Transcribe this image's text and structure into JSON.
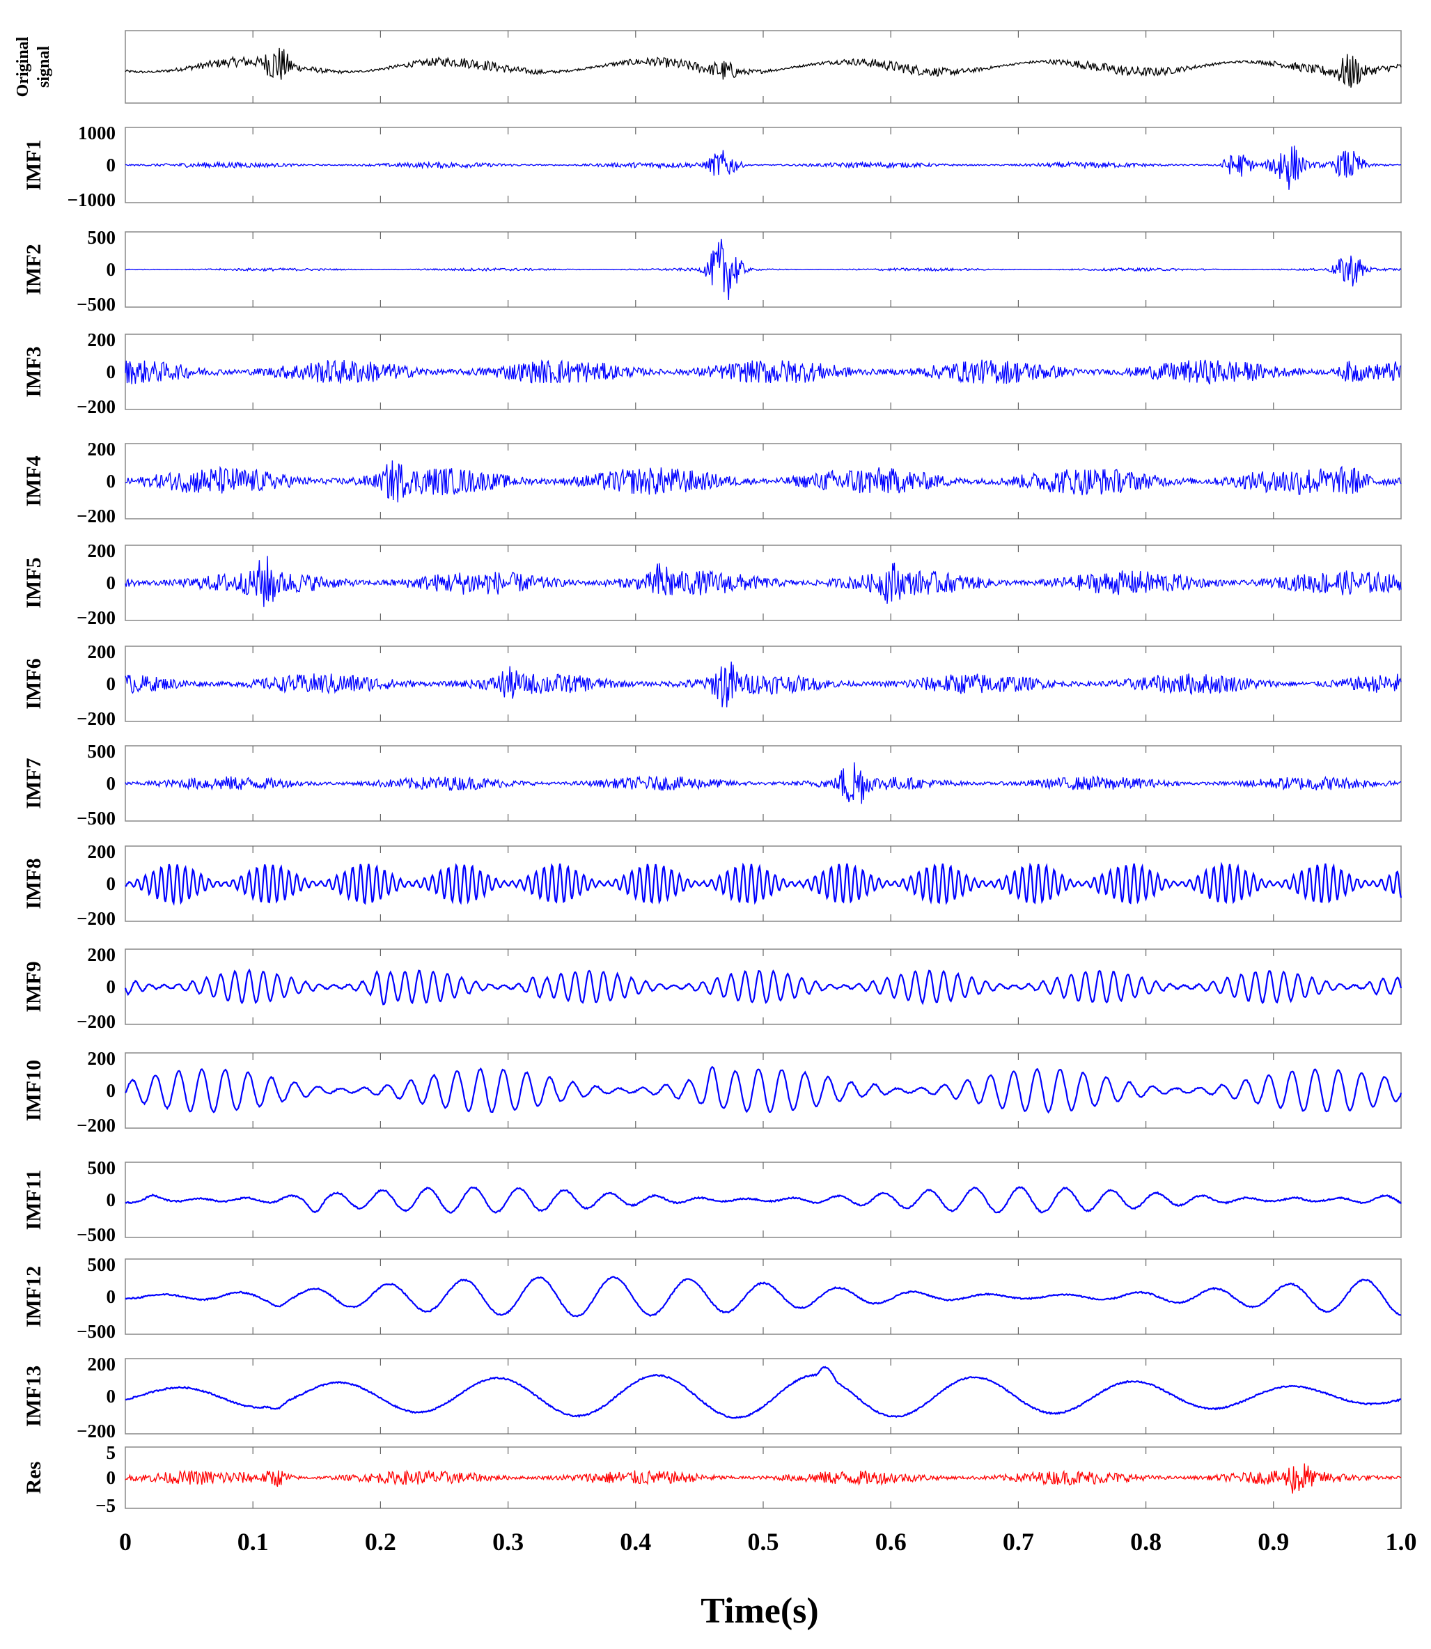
{
  "chart_data": {
    "type": "line",
    "title": "",
    "xlabel": "Time(s)",
    "xlim": [
      0,
      1.0
    ],
    "xticks": [
      "0",
      "0.1",
      "0.2",
      "0.3",
      "0.4",
      "0.5",
      "0.6",
      "0.7",
      "0.8",
      "0.9",
      "1.0"
    ],
    "grid": "vertical gridlines at x ticks",
    "panels": [
      {
        "label": "Original signal",
        "label_lines": [
          "Original",
          "signal"
        ],
        "color": "#000000",
        "ylim": null,
        "yticks": [],
        "style": {
          "freq": 220,
          "amp": 0.22,
          "bursts": [
            [
              0.12,
              0.9
            ],
            [
              0.47,
              0.6
            ],
            [
              0.96,
              0.8
            ]
          ]
        }
      },
      {
        "label": "IMF1",
        "color": "#0000ff",
        "ylim": [
          -1000,
          1000
        ],
        "yticks": [
          "1000",
          "0",
          "−1000"
        ],
        "style": {
          "freq": 900,
          "amp": 0.08,
          "bursts": [
            [
              0.47,
              0.9
            ],
            [
              0.87,
              0.9
            ],
            [
              0.91,
              0.8
            ],
            [
              0.96,
              0.6
            ]
          ]
        }
      },
      {
        "label": "IMF2",
        "color": "#0000ff",
        "ylim": [
          -500,
          500
        ],
        "yticks": [
          "500",
          "0",
          "−500"
        ],
        "style": {
          "freq": 850,
          "amp": 0.04,
          "bursts": [
            [
              0.47,
              1.0
            ],
            [
              0.96,
              0.5
            ]
          ]
        }
      },
      {
        "label": "IMF3",
        "color": "#0000ff",
        "ylim": [
          -200,
          200
        ],
        "yticks": [
          "200",
          "0",
          "−200"
        ],
        "style": {
          "freq": 800,
          "amp": 0.35,
          "bursts": [
            [
              0.96,
              0.9
            ]
          ]
        }
      },
      {
        "label": "IMF4",
        "color": "#0000ff",
        "ylim": [
          -200,
          200
        ],
        "yticks": [
          "200",
          "0",
          "−200"
        ],
        "style": {
          "freq": 700,
          "amp": 0.4,
          "bursts": [
            [
              0.21,
              0.9
            ],
            [
              0.96,
              0.7
            ]
          ]
        }
      },
      {
        "label": "IMF5",
        "color": "#0000ff",
        "ylim": [
          -200,
          200
        ],
        "yticks": [
          "200",
          "0",
          "−200"
        ],
        "style": {
          "freq": 600,
          "amp": 0.35,
          "bursts": [
            [
              0.11,
              0.8
            ],
            [
              0.42,
              0.8
            ],
            [
              0.6,
              0.7
            ]
          ]
        }
      },
      {
        "label": "IMF6",
        "color": "#0000ff",
        "ylim": [
          -200,
          200
        ],
        "yticks": [
          "200",
          "0",
          "−200"
        ],
        "style": {
          "freq": 450,
          "amp": 0.3,
          "bursts": [
            [
              0.47,
              0.9
            ],
            [
              0.3,
              0.6
            ]
          ]
        }
      },
      {
        "label": "IMF7",
        "color": "#0000ff",
        "ylim": [
          -500,
          500
        ],
        "yticks": [
          "500",
          "0",
          "−500"
        ],
        "style": {
          "freq": 300,
          "amp": 0.2,
          "bursts": [
            [
              0.57,
              0.9
            ]
          ]
        }
      },
      {
        "label": "IMF8",
        "color": "#0000ff",
        "ylim": [
          -200,
          200
        ],
        "yticks": [
          "200",
          "0",
          "−200"
        ],
        "style": {
          "freq": 160,
          "amp": 0.55,
          "bursts": [
            [
              0.23,
              0.8
            ],
            [
              0.76,
              0.85
            ]
          ]
        }
      },
      {
        "label": "IMF9",
        "color": "#0000ff",
        "ylim": [
          -200,
          200
        ],
        "yticks": [
          "200",
          "0",
          "−200"
        ],
        "style": {
          "freq": 90,
          "amp": 0.45,
          "bursts": [
            [
              0.2,
              0.8
            ],
            [
              0.32,
              0.8
            ],
            [
              0.98,
              0.9
            ]
          ]
        }
      },
      {
        "label": "IMF10",
        "color": "#0000ff",
        "ylim": [
          -200,
          200
        ],
        "yticks": [
          "200",
          "0",
          "−200"
        ],
        "style": {
          "freq": 55,
          "amp": 0.6,
          "bursts": [
            [
              0.46,
              0.95
            ],
            [
              0.59,
              0.95
            ]
          ]
        }
      },
      {
        "label": "IMF11",
        "color": "#0000ff",
        "ylim": [
          -500,
          500
        ],
        "yticks": [
          "500",
          "0",
          "−500"
        ],
        "style": {
          "freq": 28,
          "amp": 0.35,
          "bursts": [
            [
              0.02,
              0.8
            ],
            [
              0.15,
              0.8
            ],
            [
              0.92,
              0.7
            ]
          ]
        }
      },
      {
        "label": "IMF12",
        "color": "#0000ff",
        "ylim": [
          -500,
          500
        ],
        "yticks": [
          "500",
          "0",
          "−500"
        ],
        "style": {
          "freq": 17,
          "amp": 0.55,
          "bursts": [
            [
              0.12,
              0.9
            ]
          ]
        }
      },
      {
        "label": "IMF13",
        "color": "#0000ff",
        "ylim": [
          -200,
          200
        ],
        "yticks": [
          "200",
          "0",
          "−200"
        ],
        "style": {
          "freq": 8,
          "amp": 0.6,
          "bursts": [
            [
              0.12,
              0.9
            ],
            [
              0.55,
              0.9
            ]
          ]
        }
      },
      {
        "label": "Res",
        "color": "#ff0000",
        "ylim": [
          -5,
          5
        ],
        "yticks": [
          "5",
          "0",
          "−5"
        ],
        "style": {
          "freq": 900,
          "amp": 0.25,
          "bursts": [
            [
              0.12,
              0.8
            ],
            [
              0.92,
              0.7
            ]
          ]
        }
      }
    ]
  }
}
